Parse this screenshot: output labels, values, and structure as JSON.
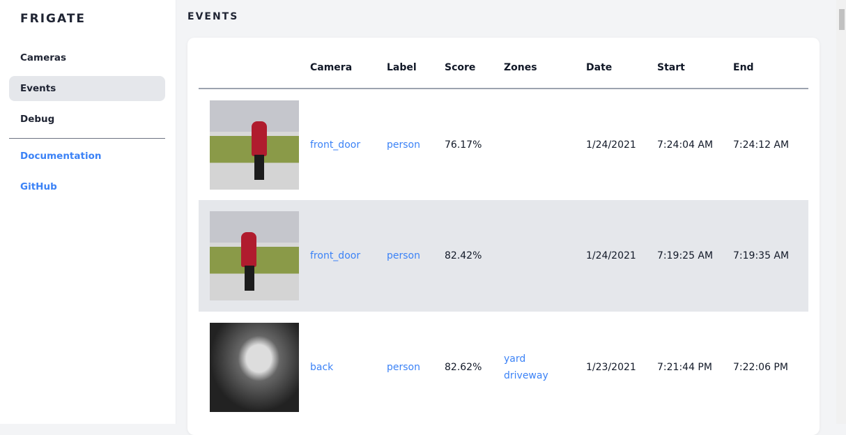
{
  "sidebar": {
    "brand": "FRIGATE",
    "items": [
      {
        "label": "Cameras"
      },
      {
        "label": "Events",
        "active": true
      },
      {
        "label": "Debug"
      }
    ],
    "links": [
      {
        "label": "Documentation"
      },
      {
        "label": "GitHub"
      }
    ]
  },
  "page": {
    "title": "EVENTS"
  },
  "table": {
    "headers": [
      "",
      "Camera",
      "Label",
      "Score",
      "Zones",
      "Date",
      "Start",
      "End"
    ],
    "rows": [
      {
        "camera": "front_door",
        "label": "person",
        "score": "76.17%",
        "zones": [],
        "date": "1/24/2021",
        "start": "7:24:04 AM",
        "end": "7:24:12 AM"
      },
      {
        "camera": "front_door",
        "label": "person",
        "score": "82.42%",
        "zones": [],
        "date": "1/24/2021",
        "start": "7:19:25 AM",
        "end": "7:19:35 AM"
      },
      {
        "camera": "back",
        "label": "person",
        "score": "82.62%",
        "zones": [
          "yard",
          "driveway"
        ],
        "date": "1/23/2021",
        "start": "7:21:44 PM",
        "end": "7:22:06 PM"
      }
    ]
  },
  "colors": {
    "accent": "#3b82f6",
    "active_bg": "#e5e7eb"
  }
}
